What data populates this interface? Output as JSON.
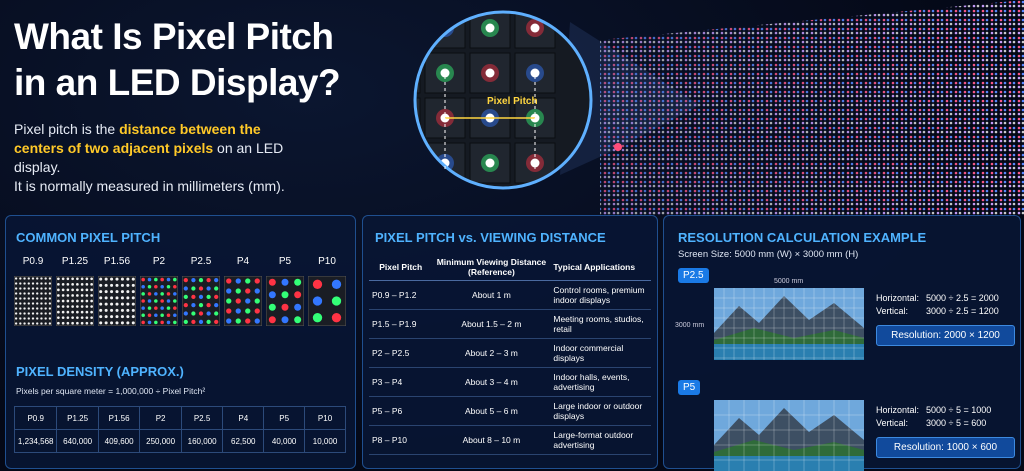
{
  "header": {
    "title_lines": [
      "What Is Pixel Pitch",
      "in an LED Display?"
    ],
    "intro": {
      "before": "Pixel pitch is the ",
      "highlight": "distance between the centers of two adjacent pixels",
      "after": " on an LED display.",
      "second_line": "It is normally measured in millimeters (mm)."
    },
    "zoom_label": "Pixel Pitch"
  },
  "common_pitch": {
    "title": "COMMON PIXEL PITCH",
    "pitches": [
      "P0.9",
      "P1.25",
      "P1.56",
      "P2",
      "P2.5",
      "P4",
      "P5",
      "P10"
    ]
  },
  "pixel_density": {
    "title": "PIXEL DENSITY (APPROX.)",
    "formula": "Pixels per square meter = 1,000,000 ÷ Pixel Pitch²",
    "table": {
      "header": [
        "P0.9",
        "P1.25",
        "P1.56",
        "P2",
        "P2.5",
        "P4",
        "P5",
        "P10"
      ],
      "values": [
        "1,234,568",
        "640,000",
        "409,600",
        "250,000",
        "160,000",
        "62,500",
        "40,000",
        "10,000"
      ]
    }
  },
  "viewing_distance": {
    "title": "PIXEL PITCH vs. VIEWING DISTANCE",
    "header": [
      "Pixel Pitch",
      "Minimum Viewing Distance (Reference)",
      "Typical Applications"
    ],
    "rows": [
      [
        "P0.9 – P1.2",
        "About 1 m",
        "Control rooms, premium indoor displays"
      ],
      [
        "P1.5 – P1.9",
        "About 1.5 – 2 m",
        "Meeting rooms, studios, retail"
      ],
      [
        "P2 – P2.5",
        "About 2 – 3 m",
        "Indoor commercial displays"
      ],
      [
        "P3 – P4",
        "About 3 – 4 m",
        "Indoor halls, events, advertising"
      ],
      [
        "P5 – P6",
        "About 5 – 6 m",
        "Large indoor or outdoor displays"
      ],
      [
        "P8 – P10",
        "About 8 – 10 m",
        "Large-format outdoor advertising"
      ]
    ]
  },
  "resolution": {
    "title": "RESOLUTION CALCULATION EXAMPLE",
    "screen_size": "Screen Size: 5000 mm (W) × 3000 mm (H)",
    "width_label": "5000 mm",
    "height_label": "3000 mm",
    "examples": [
      {
        "tag": "P2.5",
        "horizontal_label": "Horizontal:",
        "horizontal": "5000 ÷ 2.5 = 2000",
        "vertical_label": "Vertical:",
        "vertical": "3000 ÷ 2.5 = 1200",
        "result": "Resolution: 2000 × 1200"
      },
      {
        "tag": "P5",
        "horizontal_label": "Horizontal:",
        "horizontal": "5000 ÷ 5 = 1000",
        "vertical_label": "Vertical:",
        "vertical": "3000 ÷ 5 = 600",
        "result": "Resolution: 1000 × 600"
      }
    ]
  }
}
